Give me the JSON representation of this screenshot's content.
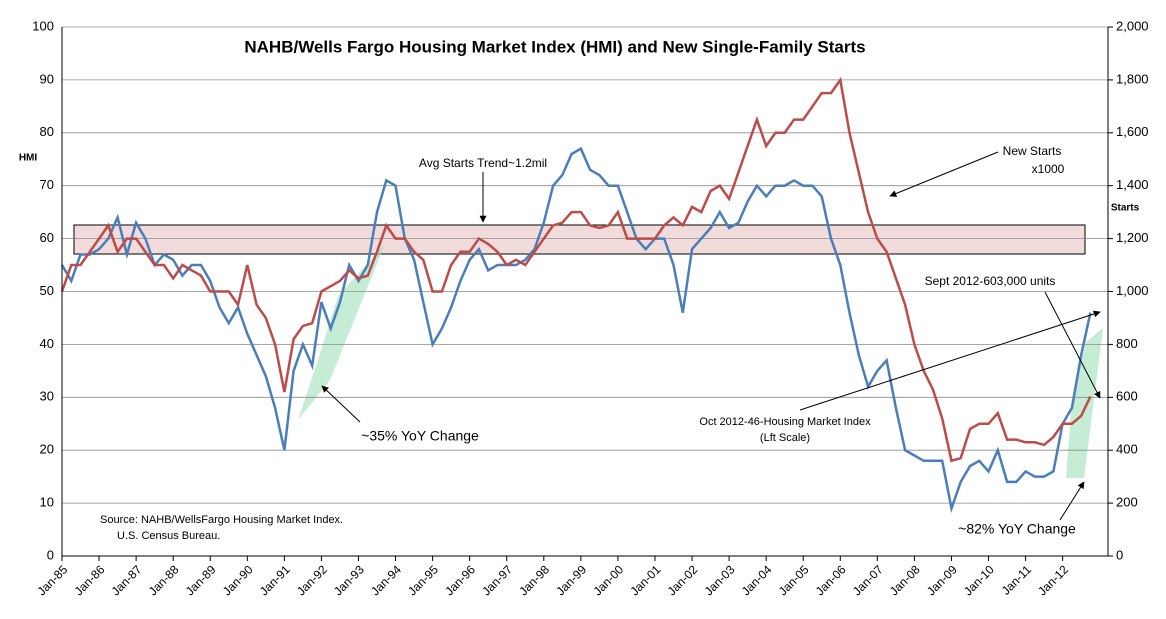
{
  "chart_data": {
    "type": "line",
    "title": "NAHB/Wells Fargo Housing Market Index (HMI) and New Single-Family Starts",
    "y_label": "HMI",
    "y2_label": "Starts",
    "x": [
      1985,
      1985.25,
      1985.5,
      1985.75,
      1986,
      1986.25,
      1986.5,
      1986.75,
      1987,
      1987.25,
      1987.5,
      1987.75,
      1988,
      1988.25,
      1988.5,
      1988.75,
      1989,
      1989.25,
      1989.5,
      1989.75,
      1990,
      1990.25,
      1990.5,
      1990.75,
      1991,
      1991.25,
      1991.5,
      1991.75,
      1992,
      1992.25,
      1992.5,
      1992.75,
      1993,
      1993.25,
      1993.5,
      1993.75,
      1994,
      1994.25,
      1994.5,
      1994.75,
      1995,
      1995.25,
      1995.5,
      1995.75,
      1996,
      1996.25,
      1996.5,
      1996.75,
      1997,
      1997.25,
      1997.5,
      1997.75,
      1998,
      1998.25,
      1998.5,
      1998.75,
      1999,
      1999.25,
      1999.5,
      1999.75,
      2000,
      2000.25,
      2000.5,
      2000.75,
      2001,
      2001.25,
      2001.5,
      2001.75,
      2002,
      2002.25,
      2002.5,
      2002.75,
      2003,
      2003.25,
      2003.5,
      2003.75,
      2004,
      2004.25,
      2004.5,
      2004.75,
      2005,
      2005.25,
      2005.5,
      2005.75,
      2006,
      2006.25,
      2006.5,
      2006.75,
      2007,
      2007.25,
      2007.5,
      2007.75,
      2008,
      2008.25,
      2008.5,
      2008.75,
      2009,
      2009.25,
      2009.5,
      2009.75,
      2010,
      2010.25,
      2010.5,
      2010.75,
      2011,
      2011.25,
      2011.5,
      2011.75,
      2012,
      2012.25,
      2012.5,
      2012.75
    ],
    "series": [
      {
        "name": "HMI",
        "color": "#4a7ebb",
        "values": [
          55,
          52,
          57,
          57,
          58,
          60,
          64,
          57,
          63,
          60,
          55,
          57,
          56,
          53,
          55,
          55,
          52,
          47,
          44,
          47,
          42,
          38,
          34,
          28,
          20,
          35,
          40,
          36,
          48,
          43,
          48,
          55,
          52,
          55,
          65,
          71,
          70,
          60,
          56,
          48,
          40,
          43,
          47,
          52,
          56,
          58,
          54,
          55,
          55,
          55,
          56,
          58,
          63,
          70,
          72,
          76,
          77,
          73,
          72,
          70,
          70,
          65,
          60,
          58,
          60,
          60,
          55,
          46,
          58,
          60,
          62,
          65,
          62,
          63,
          67,
          70,
          68,
          70,
          70,
          71,
          70,
          70,
          68,
          60,
          55,
          46,
          38,
          32,
          35,
          37,
          28,
          20,
          19,
          18,
          18,
          18,
          9,
          14,
          17,
          18,
          16,
          20,
          14,
          14,
          16,
          15,
          15,
          16,
          25,
          28,
          38,
          46
        ]
      },
      {
        "name": "Starts",
        "color": "#be4b48",
        "axis": "y2",
        "values": [
          1000,
          1100,
          1100,
          1150,
          1200,
          1250,
          1150,
          1200,
          1200,
          1150,
          1100,
          1100,
          1050,
          1100,
          1080,
          1060,
          1000,
          1000,
          1000,
          950,
          1100,
          950,
          900,
          800,
          620,
          820,
          870,
          880,
          1000,
          1020,
          1040,
          1080,
          1050,
          1060,
          1150,
          1250,
          1200,
          1200,
          1150,
          1120,
          1000,
          1000,
          1100,
          1150,
          1150,
          1200,
          1180,
          1150,
          1100,
          1120,
          1100,
          1150,
          1200,
          1250,
          1260,
          1300,
          1300,
          1250,
          1240,
          1250,
          1300,
          1200,
          1200,
          1200,
          1200,
          1250,
          1280,
          1250,
          1320,
          1300,
          1380,
          1400,
          1350,
          1450,
          1550,
          1650,
          1550,
          1600,
          1600,
          1650,
          1650,
          1700,
          1750,
          1750,
          1800,
          1600,
          1450,
          1300,
          1200,
          1150,
          1050,
          950,
          800,
          700,
          630,
          520,
          360,
          370,
          480,
          500,
          500,
          540,
          440,
          440,
          430,
          430,
          420,
          450,
          500,
          500,
          530,
          603
        ]
      }
    ],
    "xlim": [
      1985,
      2012.9
    ],
    "xticks": [
      {
        "value": 1985,
        "label": "Jan-85"
      },
      {
        "value": 1986,
        "label": "Jan-86"
      },
      {
        "value": 1987,
        "label": "Jan-87"
      },
      {
        "value": 1988,
        "label": "Jan-88"
      },
      {
        "value": 1989,
        "label": "Jan-89"
      },
      {
        "value": 1990,
        "label": "Jan-90"
      },
      {
        "value": 1991,
        "label": "Jan-91"
      },
      {
        "value": 1992,
        "label": "Jan-92"
      },
      {
        "value": 1993,
        "label": "Jan-93"
      },
      {
        "value": 1994,
        "label": "Jan-94"
      },
      {
        "value": 1995,
        "label": "Jan-95"
      },
      {
        "value": 1996,
        "label": "Jan-96"
      },
      {
        "value": 1997,
        "label": "Jan-97"
      },
      {
        "value": 1998,
        "label": "Jan-98"
      },
      {
        "value": 1999,
        "label": "Jan-99"
      },
      {
        "value": 2000,
        "label": "Jan-00"
      },
      {
        "value": 2001,
        "label": "Jan-01"
      },
      {
        "value": 2002,
        "label": "Jan-02"
      },
      {
        "value": 2003,
        "label": "Jan-03"
      },
      {
        "value": 2004,
        "label": "Jan-04"
      },
      {
        "value": 2005,
        "label": "Jan-05"
      },
      {
        "value": 2006,
        "label": "Jan-06"
      },
      {
        "value": 2007,
        "label": "Jan-07"
      },
      {
        "value": 2008,
        "label": "Jan-08"
      },
      {
        "value": 2009,
        "label": "Jan-09"
      },
      {
        "value": 2010,
        "label": "Jan-10"
      },
      {
        "value": 2011,
        "label": "Jan-11"
      },
      {
        "value": 2012,
        "label": "Jan-12"
      }
    ],
    "ylim": [
      0,
      100
    ],
    "yticks": [
      0,
      10,
      20,
      30,
      40,
      50,
      60,
      70,
      80,
      90,
      100
    ],
    "y2lim": [
      0,
      2000
    ],
    "y2ticks": [
      0,
      200,
      400,
      600,
      800,
      {
        "value": 1000,
        "label": "1,000"
      },
      {
        "value": 1200,
        "label": "1,200"
      },
      {
        "value": 1400,
        "label": "1,400"
      },
      {
        "value": 1600,
        "label": "1,600"
      },
      {
        "value": 1800,
        "label": "1,800"
      },
      {
        "value": 2000,
        "label": "2,000"
      }
    ],
    "grid": true,
    "annotations": [
      "Avg Starts Trend~1.2mil",
      "New Starts",
      "x1000",
      "Sept 2012-603,000  units",
      "Oct 2012-46-Housing Market Index",
      "(Lft Scale)",
      "~35% YoY Change",
      "~82% YoY Change",
      "Source: NAHB/WellsFargo Housing Market Index.",
      "U.S. Census Bureau."
    ]
  }
}
